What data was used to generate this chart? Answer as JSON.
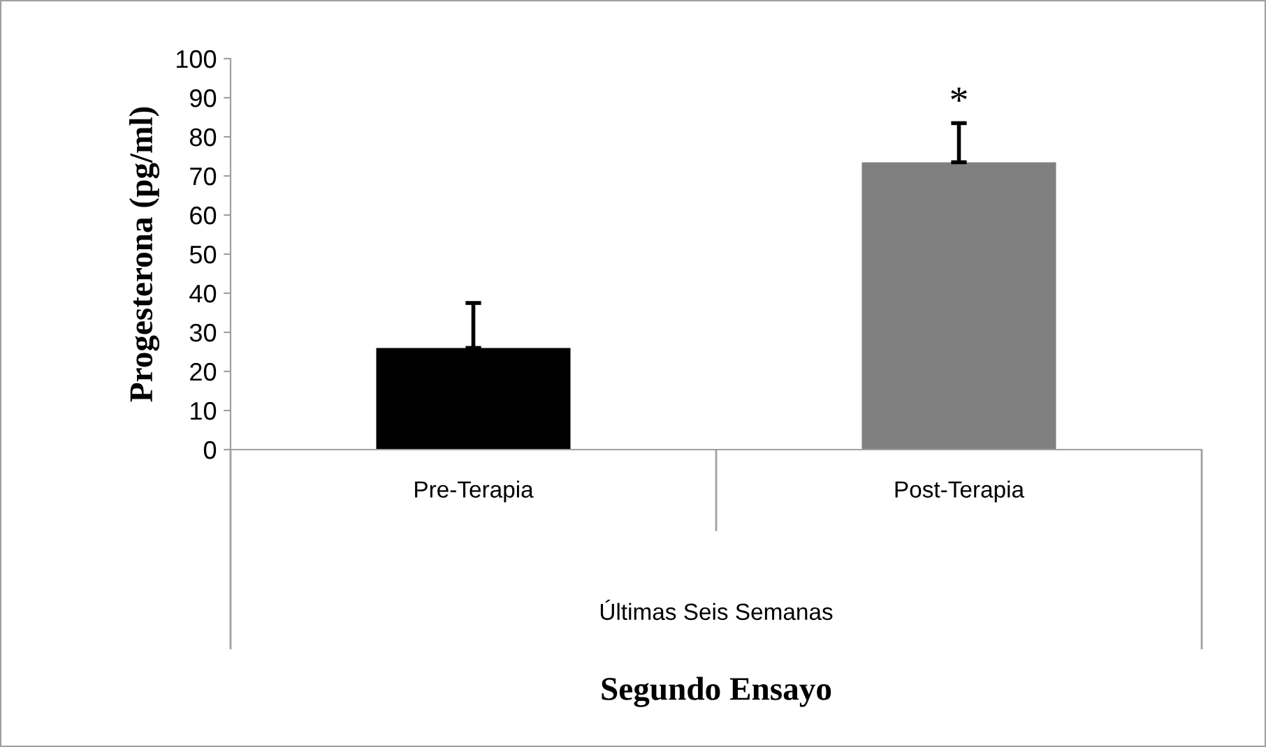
{
  "chart_data": {
    "type": "bar",
    "ylabel": "Progesterona (pg/ml)",
    "categories": [
      "Pre-Terapia",
      "Post-Terapia"
    ],
    "colors": [
      "#000000",
      "#808080"
    ],
    "values": [
      26,
      73.5
    ],
    "errors": [
      [
        26,
        37.5
      ],
      [
        73.5,
        83.5
      ]
    ],
    "ylim": [
      0,
      100
    ],
    "yticks": [
      0,
      10,
      20,
      30,
      40,
      50,
      60,
      70,
      80,
      90,
      100
    ],
    "grid": false,
    "annotations": [
      "*",
      "Últimas Seis Semanas",
      "Segundo Ensayo"
    ]
  }
}
